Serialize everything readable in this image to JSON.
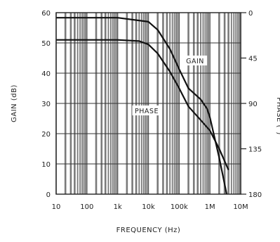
{
  "chart_data": {
    "type": "line",
    "xscale": "log",
    "xlim": [
      10,
      10000000
    ],
    "ylim_left": [
      0,
      60
    ],
    "ylim_right": [
      180,
      0
    ],
    "xlabel": "FREQUENCY (Hz)",
    "ylabel_left": "GAIN (dB)",
    "ylabel_right": "PHASE (°)",
    "x_ticks": [
      10,
      100,
      1000,
      10000,
      100000,
      1000000,
      10000000
    ],
    "x_tick_labels": [
      "10",
      "100",
      "1k",
      "10k",
      "100k",
      "1M",
      "10M"
    ],
    "y_left_ticks": [
      0,
      10,
      20,
      30,
      40,
      50,
      60
    ],
    "y_left_tick_labels": [
      "0",
      "10",
      "20",
      "30",
      "40",
      "50",
      "60"
    ],
    "y_right_ticks": [
      0,
      45,
      90,
      135,
      180
    ],
    "y_right_tick_labels": [
      "0",
      "45",
      "90",
      "135",
      "180"
    ],
    "grid": true,
    "annotations": [
      "GAIN",
      "PHASE"
    ],
    "series": [
      {
        "axis": "left",
        "x": [
          10,
          100,
          1000,
          5000,
          10000,
          20000,
          50000,
          100000,
          200000,
          500000,
          1000000,
          2000000,
          4000000
        ],
        "y": [
          51,
          51,
          51,
          50.6,
          49.5,
          46.5,
          40.5,
          35,
          29,
          24.5,
          21,
          15,
          8
        ]
      },
      {
        "axis": "right",
        "x": [
          10,
          100,
          1000,
          10000,
          20000,
          50000,
          100000,
          200000,
          500000,
          800000,
          1000000,
          2000000,
          3500000
        ],
        "y": [
          5,
          5,
          5,
          9,
          17,
          36,
          56,
          75,
          86,
          95,
          104,
          144,
          180
        ]
      }
    ]
  }
}
